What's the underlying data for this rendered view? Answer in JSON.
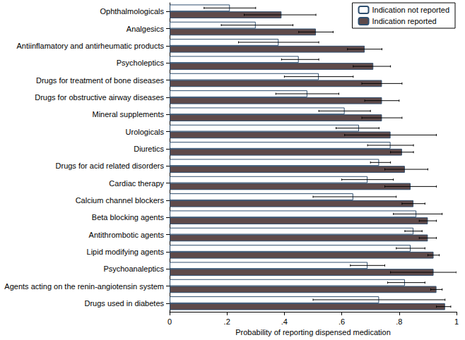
{
  "chart_data": {
    "type": "bar",
    "orientation": "horizontal",
    "x_label": "Probability of reporting dispensed medication",
    "categories": [
      "Ophthalmologicals",
      "Analgesics",
      "Antiinflamatory and antirheumatic products",
      "Psycholeptics",
      "Drugs for treatment of bone diseases",
      "Drugs for obstructive airway diseases",
      "Mineral supplements",
      "Urologicals",
      "Diuretics",
      "Drugs for acid related disorders",
      "Cardiac therapy",
      "Calcium channel blockers",
      "Beta blocking agents",
      "Antithrombotic agents",
      "Lipid modifying agents",
      "Psychoanaleptics",
      "Agents acting on the renin-angiotensin system",
      "Drugs used in diabetes"
    ],
    "series": [
      {
        "name": "Indication not reported",
        "color": "#ffffff",
        "values": [
          0.21,
          0.3,
          0.38,
          0.45,
          0.52,
          0.48,
          0.61,
          0.66,
          0.77,
          0.73,
          0.69,
          0.64,
          0.86,
          0.85,
          0.84,
          0.69,
          0.82,
          0.73
        ],
        "error_low": [
          0.12,
          0.18,
          0.24,
          0.39,
          0.4,
          0.37,
          0.52,
          0.58,
          0.69,
          0.7,
          0.6,
          0.5,
          0.78,
          0.82,
          0.79,
          0.63,
          0.76,
          0.5
        ],
        "error_high": [
          0.3,
          0.43,
          0.52,
          0.52,
          0.64,
          0.59,
          0.7,
          0.73,
          0.85,
          0.77,
          0.78,
          0.79,
          0.95,
          0.88,
          0.89,
          0.75,
          0.89,
          0.96
        ]
      },
      {
        "name": "Indication reported",
        "color": "#5e4a4a",
        "values": [
          0.39,
          0.51,
          0.68,
          0.71,
          0.74,
          0.74,
          0.74,
          0.77,
          0.81,
          0.82,
          0.84,
          0.85,
          0.9,
          0.9,
          0.92,
          0.92,
          0.93,
          0.96
        ],
        "error_low": [
          0.26,
          0.45,
          0.62,
          0.64,
          0.67,
          0.68,
          0.67,
          0.61,
          0.77,
          0.75,
          0.75,
          0.81,
          0.87,
          0.87,
          0.9,
          0.77,
          0.91,
          0.93
        ],
        "error_high": [
          0.51,
          0.57,
          0.74,
          0.77,
          0.81,
          0.8,
          0.81,
          0.93,
          0.85,
          0.9,
          0.93,
          0.89,
          0.93,
          0.93,
          0.94,
          1.0,
          0.95,
          0.98
        ]
      }
    ],
    "xlim": [
      0,
      1
    ],
    "xticks": [
      0,
      {
        "value": 0.2,
        "label": ".2"
      },
      {
        "value": 0.4,
        "label": ".4"
      },
      {
        "value": 0.6,
        "label": ".6"
      },
      {
        "value": 0.8,
        "label": ".8"
      },
      1
    ],
    "grid": false,
    "legend": "top-right"
  }
}
